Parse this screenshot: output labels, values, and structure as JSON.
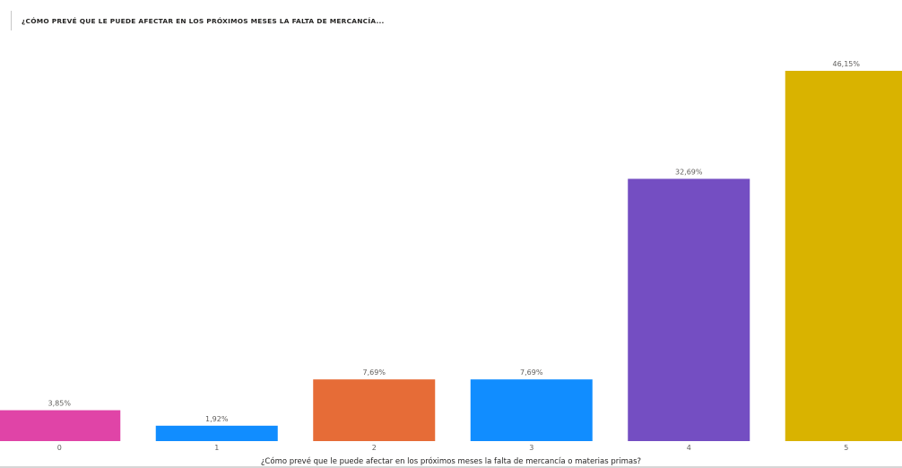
{
  "chart_data": {
    "type": "bar",
    "title": "¿CÓMO PREVÉ QUE LE PUEDE AFECTAR EN LOS PRÓXIMOS MESES LA FALTA DE MERCANCÍA...",
    "xlabel": "¿Cómo prevé que le puede afectar en los próximos meses la falta de mercancía o materias primas?",
    "ylabel": "",
    "categories": [
      "0",
      "1",
      "2",
      "3",
      "4",
      "5"
    ],
    "values": [
      3.85,
      1.92,
      7.69,
      7.69,
      32.69,
      46.15
    ],
    "data_labels": [
      "3,85%",
      "1,92%",
      "7,69%",
      "7,69%",
      "32,69%",
      "46,15%"
    ],
    "colors": [
      "#e044a7",
      "#118dff",
      "#e66c37",
      "#118dff",
      "#744ec2",
      "#d9b300"
    ],
    "ylim": [
      0,
      46.15
    ],
    "grid": false,
    "legend": "none"
  }
}
